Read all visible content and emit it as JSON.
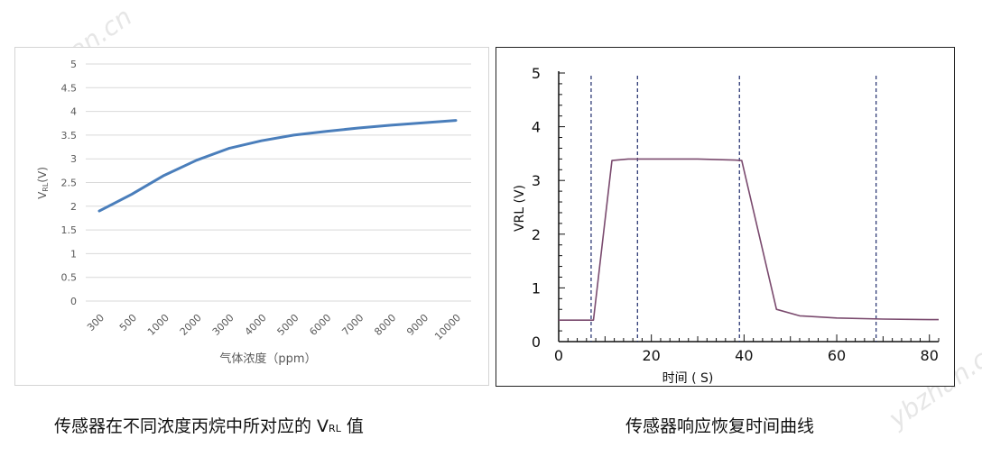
{
  "watermark": "ybzhan.cn",
  "captions": {
    "left": "传感器在不同浓度丙烷中所对应的 V",
    "left_sub": "RL",
    "left_tail": " 值",
    "right": "传感器响应恢复时间曲线"
  },
  "chart_data": [
    {
      "type": "line",
      "xlabel": "气体浓度（ppm）",
      "ylabel": "V",
      "ylabel_sub": "RL",
      "ylabel_tail": "(V)",
      "categories": [
        "300",
        "500",
        "1000",
        "2000",
        "3000",
        "4000",
        "5000",
        "6000",
        "7000",
        "8000",
        "9000",
        "10000"
      ],
      "values": [
        1.9,
        2.25,
        2.65,
        2.97,
        3.22,
        3.38,
        3.5,
        3.58,
        3.65,
        3.71,
        3.76,
        3.81
      ],
      "yticks": [
        "0",
        "0.5",
        "1",
        "1.5",
        "2",
        "2.5",
        "3",
        "3.5",
        "4",
        "4.5",
        "5"
      ],
      "ylim": [
        0,
        5
      ],
      "grid": true,
      "color": "#4a7ebb"
    },
    {
      "type": "line",
      "xlabel": "时间 ( S)",
      "ylabel": "VRL (V)",
      "xlim": [
        0,
        82
      ],
      "ylim": [
        0,
        5
      ],
      "xticks": [
        "0",
        "20",
        "40",
        "60",
        "80"
      ],
      "yticks": [
        "0",
        "1",
        "2",
        "3",
        "4",
        "5"
      ],
      "x": [
        0,
        7.5,
        11.5,
        15,
        20,
        30,
        38,
        39.5,
        47,
        52,
        60,
        70,
        80,
        82
      ],
      "y": [
        0.4,
        0.4,
        3.37,
        3.4,
        3.4,
        3.4,
        3.38,
        3.37,
        0.6,
        0.48,
        0.44,
        0.42,
        0.41,
        0.41
      ],
      "vlines": [
        7,
        17,
        39,
        68.5
      ],
      "color": "#7a4a6e"
    }
  ]
}
